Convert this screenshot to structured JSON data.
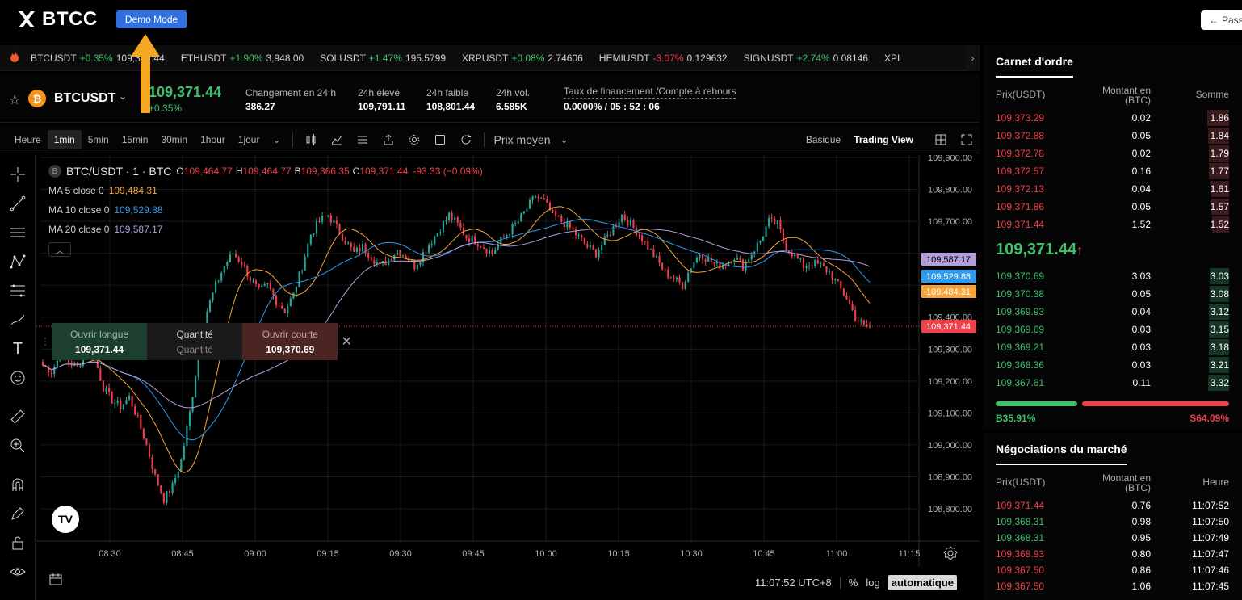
{
  "header": {
    "brand": "BTCC",
    "demo_label": "Demo Mode",
    "pass_label": "Pass"
  },
  "ticker": {
    "items": [
      {
        "symbol": "BTCUSDT",
        "change": "+0.35%",
        "price": "109,371.44",
        "dir": "up"
      },
      {
        "symbol": "ETHUSDT",
        "change": "+1.90%",
        "price": "3,948.00",
        "dir": "up"
      },
      {
        "symbol": "SOLUSDT",
        "change": "+1.47%",
        "price": "195.5799",
        "dir": "up"
      },
      {
        "symbol": "XRPUSDT",
        "change": "+0.08%",
        "price": "2.74606",
        "dir": "up"
      },
      {
        "symbol": "HEMIUSDT",
        "change": "-3.07%",
        "price": "0.129632",
        "dir": "down"
      },
      {
        "symbol": "SIGNUSDT",
        "change": "+2.74%",
        "price": "0.08146",
        "dir": "up"
      },
      {
        "symbol": "XPL",
        "change": "",
        "price": "",
        "dir": "up"
      }
    ]
  },
  "pair": {
    "symbol": "BTCUSDT",
    "price": "109,371.44",
    "change": "+0.35%",
    "stats": [
      {
        "label": "Changement en 24 h",
        "value": "386.27"
      },
      {
        "label": "24h élevé",
        "value": "109,791.11"
      },
      {
        "label": "24h faible",
        "value": "108,801.44"
      },
      {
        "label": "24h vol.",
        "value": "6.585K"
      },
      {
        "label": "Taux de financement /Compte à rebours",
        "value": "0.0000% / 05 : 52 : 06"
      }
    ]
  },
  "toolbar": {
    "timeframes": [
      "Heure",
      "1min",
      "5min",
      "15min",
      "30min",
      "1hour",
      "1jour"
    ],
    "active_timeframe": "1min",
    "price_mode": "Prix moyen",
    "view_basic": "Basique",
    "view_tv": "Trading View"
  },
  "chart_legend": {
    "title": "BTC/USDT · 1 · BTC",
    "ohlc": [
      {
        "k": "O",
        "v": "109,464.77"
      },
      {
        "k": "H",
        "v": "109,464.77"
      },
      {
        "k": "B",
        "v": "109,366.35"
      },
      {
        "k": "C",
        "v": "109,371.44"
      }
    ],
    "delta": "-93.33 (−0,09%)",
    "ma": [
      {
        "label": "MA 5 close 0",
        "value": "109,484.31",
        "color": "#f7a53a"
      },
      {
        "label": "MA 10 close 0",
        "value": "109,529.88",
        "color": "#2f9bf0"
      },
      {
        "label": "MA 20 close 0",
        "value": "109,587.17",
        "color": "#b39ddb"
      }
    ]
  },
  "order_widget": {
    "long_label": "Ouvrir longue",
    "long_price": "109,371.44",
    "qty_label": "Quantité",
    "qty_placeholder": "Quantité",
    "short_label": "Ouvrir courte",
    "short_price": "109,370.69"
  },
  "chart_data": {
    "type": "candlestick",
    "title": "BTC/USDT · 1 · BTC",
    "x_ticks": [
      "08:30",
      "08:45",
      "09:00",
      "09:15",
      "09:30",
      "09:45",
      "10:00",
      "10:15",
      "10:30",
      "10:45",
      "11:00",
      "11:15"
    ],
    "y_ticks": [
      "109,900.00",
      "109,800.00",
      "109,700.00",
      "109,400.00",
      "109,300.00",
      "109,200.00",
      "109,100.00",
      "109,000.00",
      "108,900.00",
      "108,800.00"
    ],
    "ylim": [
      108750,
      109920
    ],
    "price_tags": [
      {
        "value": 109587.17,
        "label": "109,587.17",
        "color": "#b39ddb"
      },
      {
        "value": 109529.88,
        "label": "109,529.88",
        "color": "#2f9bf0"
      },
      {
        "value": 109484.31,
        "label": "109,484.31",
        "color": "#f7a53a"
      },
      {
        "value": 109371.44,
        "label": "109,371.44",
        "color": "#f0404a"
      }
    ],
    "close_path": [
      109250,
      109230,
      109280,
      109260,
      109240,
      109300,
      109270,
      109180,
      109140,
      109120,
      109150,
      109080,
      109000,
      108900,
      108830,
      108870,
      108950,
      109100,
      109280,
      109420,
      109500,
      109560,
      109600,
      109570,
      109520,
      109480,
      109500,
      109450,
      109420,
      109470,
      109560,
      109660,
      109700,
      109720,
      109680,
      109640,
      109600,
      109620,
      109590,
      109560,
      109580,
      109610,
      109590,
      109560,
      109600,
      109640,
      109680,
      109720,
      109690,
      109650,
      109640,
      109620,
      109600,
      109640,
      109670,
      109700,
      109740,
      109780,
      109760,
      109720,
      109700,
      109680,
      109650,
      109620,
      109600,
      109640,
      109680,
      109720,
      109690,
      109660,
      109620,
      109580,
      109540,
      109520,
      109500,
      109560,
      109600,
      109580,
      109560,
      109570,
      109590,
      109560,
      109600,
      109640,
      109700,
      109690,
      109620,
      109590,
      109560,
      109570,
      109560,
      109540,
      109500,
      109460,
      109400,
      109371
    ]
  },
  "status": {
    "clock": "11:07:52 UTC+8",
    "pct": "%",
    "log": "log",
    "auto": "automatique"
  },
  "orderbook": {
    "title": "Carnet d'ordre",
    "col_price": "Prix(USDT)",
    "col_amount": "Montant en (BTC)",
    "col_sum": "Somme",
    "asks": [
      {
        "price": "109,373.29",
        "amount": "0.02",
        "sum": "1.86",
        "depth": 0.95
      },
      {
        "price": "109,372.88",
        "amount": "0.05",
        "sum": "1.84",
        "depth": 0.93
      },
      {
        "price": "109,372.78",
        "amount": "0.02",
        "sum": "1.79",
        "depth": 0.9
      },
      {
        "price": "109,372.57",
        "amount": "0.16",
        "sum": "1.77",
        "depth": 0.89
      },
      {
        "price": "109,372.13",
        "amount": "0.04",
        "sum": "1.61",
        "depth": 0.8
      },
      {
        "price": "109,371.86",
        "amount": "0.05",
        "sum": "1.57",
        "depth": 0.78
      },
      {
        "price": "109,371.44",
        "amount": "1.52",
        "sum": "1.52",
        "depth": 0.75
      }
    ],
    "last_price": "109,371.44",
    "bids": [
      {
        "price": "109,370.69",
        "amount": "3.03",
        "sum": "3.03",
        "depth": 0.85
      },
      {
        "price": "109,370.38",
        "amount": "0.05",
        "sum": "3.08",
        "depth": 0.87
      },
      {
        "price": "109,369.93",
        "amount": "0.04",
        "sum": "3.12",
        "depth": 0.88
      },
      {
        "price": "109,369.69",
        "amount": "0.03",
        "sum": "3.15",
        "depth": 0.89
      },
      {
        "price": "109,369.21",
        "amount": "0.03",
        "sum": "3.18",
        "depth": 0.9
      },
      {
        "price": "109,368.36",
        "amount": "0.03",
        "sum": "3.21",
        "depth": 0.91
      },
      {
        "price": "109,367.61",
        "amount": "0.11",
        "sum": "3.32",
        "depth": 0.94
      }
    ],
    "buy_ratio": "B35.91%",
    "sell_ratio": "S64.09%",
    "buy_fraction": 0.3591
  },
  "trades": {
    "title": "Négociations du marché",
    "col_price": "Prix(USDT)",
    "col_amount": "Montant en (BTC)",
    "col_time": "Heure",
    "rows": [
      {
        "price": "109,371.44",
        "amount": "0.76",
        "time": "11:07:52",
        "dir": "down"
      },
      {
        "price": "109,368.31",
        "amount": "0.98",
        "time": "11:07:50",
        "dir": "up"
      },
      {
        "price": "109,368.31",
        "amount": "0.95",
        "time": "11:07:49",
        "dir": "up"
      },
      {
        "price": "109,368.93",
        "amount": "0.80",
        "time": "11:07:47",
        "dir": "down"
      },
      {
        "price": "109,367.50",
        "amount": "0.86",
        "time": "11:07:46",
        "dir": "down"
      },
      {
        "price": "109,367.50",
        "amount": "1.06",
        "time": "11:07:45",
        "dir": "down"
      }
    ]
  }
}
